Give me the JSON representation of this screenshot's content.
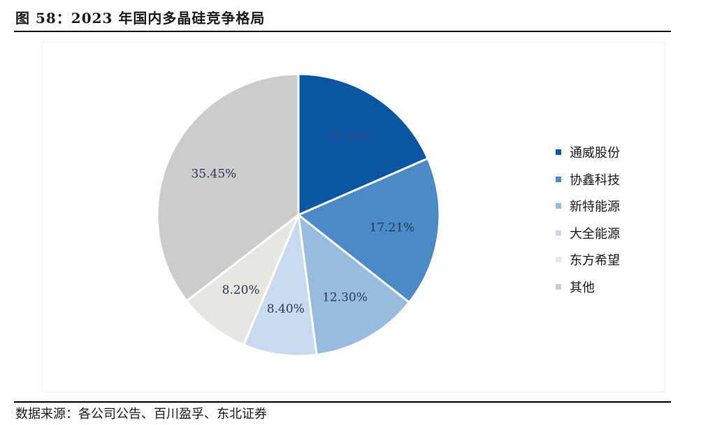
{
  "figure": {
    "title": "图 58：2023 年国内多晶硅竞争格局",
    "source": "数据来源：各公司公告、百川盈孚、东北证券"
  },
  "chart_data": {
    "type": "pie",
    "labels": [
      "通威股份",
      "协鑫科技",
      "新特能源",
      "大全能源",
      "东方希望",
      "其他"
    ],
    "values": [
      18.44,
      17.21,
      12.3,
      8.4,
      8.2,
      35.45
    ],
    "value_labels": [
      "18.44%",
      "17.21%",
      "12.30%",
      "8.40%",
      "8.20%",
      "35.45%"
    ],
    "colors": [
      "#0b56a4",
      "#4a8ac6",
      "#98bbe0",
      "#c9daee",
      "#e8e6e1",
      "#cccccc"
    ],
    "label_colors": [
      "#2b4c78",
      "#2a3b55",
      "#2a3b55",
      "#2a3b55",
      "#2a3b55",
      "#2a3b55"
    ],
    "legend_position": "right",
    "start_angle": "12 o'clock",
    "direction": "clockwise"
  }
}
